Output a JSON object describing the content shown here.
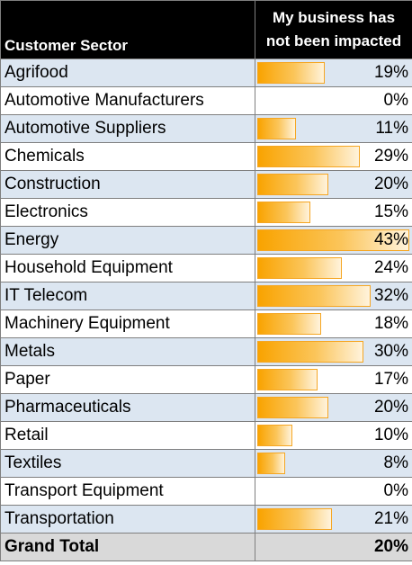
{
  "chart_data": {
    "type": "table",
    "columns": [
      "Customer Sector",
      "My business has not been impacted"
    ],
    "rows": [
      {
        "sector": "Agrifood",
        "value": 19,
        "label": "19%"
      },
      {
        "sector": "Automotive Manufacturers",
        "value": 0,
        "label": "0%"
      },
      {
        "sector": "Automotive Suppliers",
        "value": 11,
        "label": "11%"
      },
      {
        "sector": "Chemicals",
        "value": 29,
        "label": "29%"
      },
      {
        "sector": "Construction",
        "value": 20,
        "label": "20%"
      },
      {
        "sector": "Electronics",
        "value": 15,
        "label": "15%"
      },
      {
        "sector": "Energy",
        "value": 43,
        "label": "43%"
      },
      {
        "sector": "Household Equipment",
        "value": 24,
        "label": "24%"
      },
      {
        "sector": "IT Telecom",
        "value": 32,
        "label": "32%"
      },
      {
        "sector": "Machinery Equipment",
        "value": 18,
        "label": "18%"
      },
      {
        "sector": "Metals",
        "value": 30,
        "label": "30%"
      },
      {
        "sector": "Paper",
        "value": 17,
        "label": "17%"
      },
      {
        "sector": "Pharmaceuticals",
        "value": 20,
        "label": "20%"
      },
      {
        "sector": "Retail",
        "value": 10,
        "label": "10%"
      },
      {
        "sector": "Textiles",
        "value": 8,
        "label": "8%"
      },
      {
        "sector": "Transport Equipment",
        "value": 0,
        "label": "0%"
      },
      {
        "sector": "Transportation",
        "value": 21,
        "label": "21%"
      }
    ],
    "total": {
      "label": "Grand Total",
      "value": 20,
      "display": "20%"
    },
    "bar_max": 43,
    "colors": {
      "bar": "#f9a300",
      "bar_border": "#f5a623",
      "header_bg": "#000000",
      "band": "#dce6f1",
      "total_bg": "#d9d9d9"
    }
  }
}
